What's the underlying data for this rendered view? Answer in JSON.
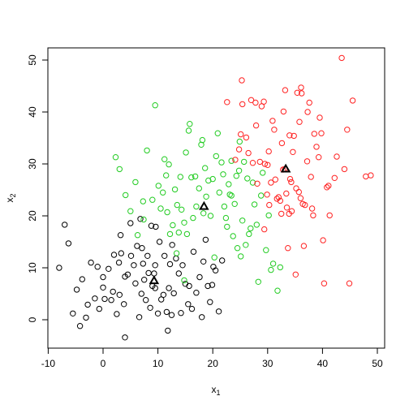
{
  "chart_data": {
    "type": "scatter",
    "title": "",
    "xlabel_main": "x",
    "xlabel_sub": "1",
    "ylabel_main": "x",
    "ylabel_sub": "2",
    "xlim": [
      -10,
      50
    ],
    "ylim": [
      -5,
      52
    ],
    "x_ticks": [
      -10,
      0,
      10,
      20,
      30,
      40,
      50
    ],
    "y_ticks": [
      0,
      10,
      20,
      30,
      40,
      50
    ],
    "x_tick_labels": [
      "-10",
      "0",
      "10",
      "20",
      "30",
      "40",
      "50"
    ],
    "y_tick_labels": [
      "0",
      "10",
      "20",
      "30",
      "40",
      "50"
    ],
    "grid": false,
    "legend": "none",
    "series": [
      {
        "color": "#000000",
        "marker": "open-circle",
        "points": [
          [
            -8,
            10
          ],
          [
            -7,
            18.3
          ],
          [
            -6.3,
            14.7
          ],
          [
            -5.5,
            1.2
          ],
          [
            -4.8,
            5.8
          ],
          [
            -4.2,
            -1.2
          ],
          [
            -3.8,
            7.8
          ],
          [
            -3.1,
            0.4
          ],
          [
            -2.8,
            2.9
          ],
          [
            -2.2,
            11
          ],
          [
            -1.5,
            4.1
          ],
          [
            -1,
            10.2
          ],
          [
            -0.7,
            2.1
          ],
          [
            0,
            8.2
          ],
          [
            0,
            6.2
          ],
          [
            0.3,
            4
          ],
          [
            1,
            9.8
          ],
          [
            1.5,
            3.8
          ],
          [
            1.8,
            5.4
          ],
          [
            2,
            12.5
          ],
          [
            2.5,
            1.1
          ],
          [
            2.9,
            11
          ],
          [
            3,
            4.8
          ],
          [
            3.3,
            12.8
          ],
          [
            3.2,
            16.3
          ],
          [
            3.8,
            3
          ],
          [
            4,
            8.3
          ],
          [
            4.5,
            8.7
          ],
          [
            5,
            18.6
          ],
          [
            5.1,
            12.3
          ],
          [
            5.6,
            10.5
          ],
          [
            5.9,
            7
          ],
          [
            6.2,
            14.2
          ],
          [
            6.6,
            0.5
          ],
          [
            6.8,
            19.4
          ],
          [
            7,
            5
          ],
          [
            7.1,
            13.8
          ],
          [
            7.3,
            10.8
          ],
          [
            7.5,
            7.7
          ],
          [
            7.8,
            3.8
          ],
          [
            8.1,
            12.3
          ],
          [
            8.3,
            9
          ],
          [
            8.6,
            2.3
          ],
          [
            8.8,
            18.1
          ],
          [
            9,
            6.5
          ],
          [
            9.3,
            8.9
          ],
          [
            9.5,
            10.5
          ],
          [
            9.6,
            17.9
          ],
          [
            10,
            1.2
          ],
          [
            10.3,
            15
          ],
          [
            10.6,
            3.9
          ],
          [
            11,
            4.8
          ],
          [
            11.2,
            12.3
          ],
          [
            11.6,
            1.5
          ],
          [
            11.8,
            -2.1
          ],
          [
            12,
            6.1
          ],
          [
            12.2,
            10.7
          ],
          [
            12.5,
            0.9
          ],
          [
            12.6,
            14.4
          ],
          [
            12.9,
            5.1
          ],
          [
            13.3,
            11.8
          ],
          [
            13.8,
            8.9
          ],
          [
            14.2,
            1.3
          ],
          [
            14.5,
            10.5
          ],
          [
            15,
            6.9
          ],
          [
            15.5,
            3
          ],
          [
            15.7,
            6.5
          ],
          [
            16.2,
            2.1
          ],
          [
            16.5,
            13.1
          ],
          [
            17,
            5.2
          ],
          [
            17.6,
            8.2
          ],
          [
            18,
            0.5
          ],
          [
            18.3,
            11.2
          ],
          [
            18.7,
            15.4
          ],
          [
            19.1,
            6.5
          ],
          [
            19.5,
            3.4
          ],
          [
            19.9,
            6.7
          ],
          [
            20.1,
            10.2
          ],
          [
            20.5,
            9.5
          ],
          [
            21.1,
            1.6
          ],
          [
            21.7,
            11.4
          ],
          [
            4,
            -3.4
          ],
          [
            9.5,
            6.1
          ]
        ]
      },
      {
        "color": "#22cc22",
        "marker": "open-circle",
        "points": [
          [
            2.3,
            31.3
          ],
          [
            3,
            29
          ],
          [
            4.1,
            24
          ],
          [
            5,
            20.9
          ],
          [
            5.9,
            26.5
          ],
          [
            6.3,
            16.3
          ],
          [
            7.3,
            22.8
          ],
          [
            7.4,
            19.3
          ],
          [
            8,
            32.6
          ],
          [
            9,
            23.1
          ],
          [
            9.5,
            41.3
          ],
          [
            10.1,
            25.8
          ],
          [
            10.5,
            21.4
          ],
          [
            10.9,
            24.5
          ],
          [
            11.2,
            30.9
          ],
          [
            11.5,
            27.8
          ],
          [
            11.7,
            20.7
          ],
          [
            12,
            29.9
          ],
          [
            12.2,
            16.5
          ],
          [
            12.7,
            18.2
          ],
          [
            13.1,
            25.1
          ],
          [
            13.4,
            12.8
          ],
          [
            13.5,
            22.1
          ],
          [
            13.8,
            16.8
          ],
          [
            14.1,
            27.5
          ],
          [
            14.3,
            21.2
          ],
          [
            14.8,
            18.7
          ],
          [
            15.1,
            32.2
          ],
          [
            15.3,
            16.5
          ],
          [
            15.6,
            36.4
          ],
          [
            15.8,
            37.7
          ],
          [
            16.1,
            27.4
          ],
          [
            16.4,
            19.6
          ],
          [
            16.8,
            27.6
          ],
          [
            17,
            21.8
          ],
          [
            17.5,
            25.3
          ],
          [
            17.9,
            33.7
          ],
          [
            18.1,
            34.6
          ],
          [
            18.3,
            20.5
          ],
          [
            18.6,
            29.2
          ],
          [
            18.8,
            23.7
          ],
          [
            19.2,
            26.8
          ],
          [
            19.6,
            20
          ],
          [
            20,
            27.1
          ],
          [
            20.3,
            12
          ],
          [
            20.6,
            31.5
          ],
          [
            20.9,
            35.9
          ],
          [
            21.2,
            24.5
          ],
          [
            21.6,
            30.3
          ],
          [
            21.9,
            28
          ],
          [
            22.1,
            21.8
          ],
          [
            22.4,
            19.6
          ],
          [
            22.6,
            17.9
          ],
          [
            22.9,
            26.1
          ],
          [
            23.1,
            24.1
          ],
          [
            23.4,
            30.6
          ],
          [
            23.7,
            16.1
          ],
          [
            24,
            22.3
          ],
          [
            24.3,
            27.7
          ],
          [
            24.5,
            13.8
          ],
          [
            24.8,
            28.7
          ],
          [
            25.1,
            12.2
          ],
          [
            25.4,
            19.1
          ],
          [
            25.7,
            30.4
          ],
          [
            26,
            14.4
          ],
          [
            26.3,
            27.2
          ],
          [
            26.6,
            16.5
          ],
          [
            26.9,
            17.6
          ],
          [
            27.3,
            26.4
          ],
          [
            27.6,
            22.2
          ],
          [
            28,
            18.3
          ],
          [
            28.3,
            7.3
          ],
          [
            28.8,
            23.9
          ],
          [
            29.1,
            28.3
          ],
          [
            29.7,
            13.4
          ],
          [
            30.2,
            20.1
          ],
          [
            30.6,
            9.6
          ],
          [
            31,
            10.8
          ],
          [
            31.8,
            5.6
          ],
          [
            32.3,
            10.1
          ],
          [
            24.9,
            34.3
          ],
          [
            23.4,
            23.9
          ],
          [
            14.8,
            7.6
          ]
        ]
      },
      {
        "color": "#ff2222",
        "marker": "open-circle",
        "points": [
          [
            22.6,
            41.9
          ],
          [
            24.1,
            30.8
          ],
          [
            24.8,
            32.8
          ],
          [
            25.1,
            35.7
          ],
          [
            25.3,
            46.1
          ],
          [
            25.4,
            41.5
          ],
          [
            26.1,
            35.1
          ],
          [
            26.5,
            32.1
          ],
          [
            27,
            42.3
          ],
          [
            27.3,
            30.2
          ],
          [
            27.8,
            41.8
          ],
          [
            27.9,
            37.4
          ],
          [
            28.1,
            26.2
          ],
          [
            28.6,
            30.4
          ],
          [
            28.9,
            41.1
          ],
          [
            29.3,
            42
          ],
          [
            29.4,
            17.4
          ],
          [
            29.5,
            30
          ],
          [
            29.9,
            24.1
          ],
          [
            30,
            29.8
          ],
          [
            30.2,
            32.4
          ],
          [
            30.3,
            22.1
          ],
          [
            30.6,
            26.4
          ],
          [
            30.9,
            38.3
          ],
          [
            31.2,
            36.6
          ],
          [
            31.4,
            27
          ],
          [
            31.7,
            23.3
          ],
          [
            32,
            23.6
          ],
          [
            32.3,
            22.9
          ],
          [
            32.5,
            20.4
          ],
          [
            32.6,
            34
          ],
          [
            32.9,
            40.1
          ],
          [
            33.1,
            29
          ],
          [
            33.2,
            44.2
          ],
          [
            33.4,
            24.3
          ],
          [
            33.5,
            21.6
          ],
          [
            33.7,
            13.8
          ],
          [
            33.9,
            20.4
          ],
          [
            34,
            35.5
          ],
          [
            34.1,
            27.1
          ],
          [
            34.3,
            26.5
          ],
          [
            34.4,
            20.9
          ],
          [
            34.6,
            32.3
          ],
          [
            34.8,
            35.4
          ],
          [
            35.1,
            8.7
          ],
          [
            35.2,
            25.3
          ],
          [
            35.4,
            43.7
          ],
          [
            35.7,
            24.6
          ],
          [
            35.8,
            38.1
          ],
          [
            36.1,
            44.7
          ],
          [
            36.2,
            43.6
          ],
          [
            36.4,
            22.3
          ],
          [
            36.6,
            14.2
          ],
          [
            36.8,
            22.1
          ],
          [
            37.2,
            30.5
          ],
          [
            37.3,
            40
          ],
          [
            37.6,
            41.8
          ],
          [
            37.9,
            27.5
          ],
          [
            38.1,
            21.4
          ],
          [
            38.3,
            20.1
          ],
          [
            38.5,
            35.8
          ],
          [
            38.9,
            33.3
          ],
          [
            39.3,
            31.3
          ],
          [
            39.5,
            38.9
          ],
          [
            39.8,
            35.9
          ],
          [
            40.1,
            15.3
          ],
          [
            40.3,
            7
          ],
          [
            40.8,
            25.5
          ],
          [
            41.1,
            25.8
          ],
          [
            41.3,
            20.1
          ],
          [
            42.2,
            27.3
          ],
          [
            42.6,
            31.4
          ],
          [
            43.5,
            50.4
          ],
          [
            44,
            29
          ],
          [
            44.5,
            36.6
          ],
          [
            44.9,
            7
          ],
          [
            45.5,
            42.2
          ],
          [
            47.9,
            27.6
          ],
          [
            48.8,
            27.8
          ],
          [
            36,
            23.4
          ],
          [
            32.8,
            28.9
          ]
        ]
      }
    ],
    "centroids": [
      {
        "color": "#000000",
        "marker": "open-triangle",
        "x": 9.3,
        "y": 7.5
      },
      {
        "color": "#000000",
        "marker": "open-triangle",
        "x": 18.4,
        "y": 21.8
      },
      {
        "color": "#000000",
        "marker": "open-triangle",
        "x": 33.3,
        "y": 29
      }
    ]
  }
}
